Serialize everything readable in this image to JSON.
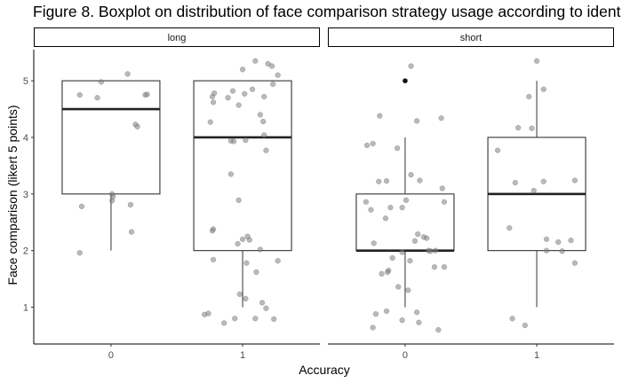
{
  "chart_data": {
    "type": "boxplot",
    "title": "Figure 8. Boxplot on distribution of face comparison strategy usage according to ident",
    "xlabel": "Accuracy",
    "ylabel": "Face comparison (likert 5 points)",
    "y_ticks": [
      1,
      2,
      3,
      4,
      5
    ],
    "ylim": [
      0.35,
      5.55
    ],
    "facets": [
      {
        "label": "long",
        "groups": [
          {
            "category": "0",
            "box": {
              "min": 2,
              "q1": 3,
              "median": 4.5,
              "q3": 5,
              "max": 5
            },
            "outliers": [],
            "points": [
              [
                -0.32,
                4.75
              ],
              [
                -0.14,
                4.7
              ],
              [
                -0.1,
                4.98
              ],
              [
                0.17,
                5.12
              ],
              [
                0.25,
                4.23
              ],
              [
                0.27,
                4.19
              ],
              [
                0.35,
                4.75
              ],
              [
                0.37,
                4.76
              ],
              [
                -0.3,
                2.78
              ],
              [
                0.01,
                3.0
              ],
              [
                0.02,
                2.95
              ],
              [
                0.01,
                2.88
              ],
              [
                0.2,
                2.81
              ],
              [
                0.21,
                2.33
              ],
              [
                -0.32,
                1.96
              ]
            ]
          },
          {
            "category": "1",
            "box": {
              "min": 1,
              "q1": 2,
              "median": 4,
              "q3": 5,
              "max": 5
            },
            "outliers": [],
            "points": [
              [
                -0.3,
                4.62
              ],
              [
                -0.31,
                4.72
              ],
              [
                -0.29,
                4.78
              ],
              [
                -0.15,
                4.7
              ],
              [
                -0.1,
                4.82
              ],
              [
                -0.04,
                4.57
              ],
              [
                0.02,
                4.77
              ],
              [
                0.1,
                4.85
              ],
              [
                0.13,
                5.35
              ],
              [
                0.18,
                4.4
              ],
              [
                0.22,
                4.72
              ],
              [
                0.26,
                5.3
              ],
              [
                0.3,
                5.26
              ],
              [
                0.31,
                4.94
              ],
              [
                0.36,
                5.1
              ],
              [
                0.0,
                5.2
              ],
              [
                -0.33,
                4.27
              ],
              [
                -0.12,
                3.94
              ],
              [
                -0.09,
                3.93
              ],
              [
                0.03,
                3.95
              ],
              [
                0.21,
                4.28
              ],
              [
                0.22,
                4.04
              ],
              [
                0.24,
                3.77
              ],
              [
                -0.12,
                3.35
              ],
              [
                -0.3,
                2.38
              ],
              [
                -0.31,
                2.35
              ],
              [
                -0.04,
                2.89
              ],
              [
                0.05,
                2.25
              ],
              [
                0.07,
                2.19
              ],
              [
                -0.05,
                2.12
              ],
              [
                0.0,
                2.2
              ],
              [
                0.18,
                2.02
              ],
              [
                -0.3,
                1.84
              ],
              [
                0.04,
                1.78
              ],
              [
                0.14,
                1.62
              ],
              [
                0.36,
                1.82
              ],
              [
                -0.03,
                1.23
              ],
              [
                0.03,
                1.15
              ],
              [
                0.2,
                1.08
              ],
              [
                0.24,
                0.98
              ],
              [
                -0.39,
                0.87
              ],
              [
                -0.35,
                0.89
              ],
              [
                -0.19,
                0.72
              ],
              [
                -0.08,
                0.8
              ],
              [
                0.13,
                0.8
              ],
              [
                0.32,
                0.79
              ]
            ]
          }
        ]
      },
      {
        "label": "short",
        "groups": [
          {
            "category": "0",
            "box": {
              "min": 1,
              "q1": 2,
              "median": 2,
              "q3": 3,
              "max": 4
            },
            "outliers": [
              5
            ],
            "points": [
              [
                0.06,
                5.26
              ],
              [
                -0.26,
                4.38
              ],
              [
                0.12,
                4.29
              ],
              [
                0.37,
                4.34
              ],
              [
                -0.39,
                3.86
              ],
              [
                -0.33,
                3.89
              ],
              [
                -0.08,
                3.81
              ],
              [
                0.06,
                3.34
              ],
              [
                0.15,
                3.24
              ],
              [
                0.38,
                3.1
              ],
              [
                -0.27,
                3.22
              ],
              [
                -0.19,
                3.23
              ],
              [
                -0.4,
                2.86
              ],
              [
                -0.2,
                2.57
              ],
              [
                -0.03,
                2.76
              ],
              [
                -0.15,
                2.76
              ],
              [
                -0.35,
                2.72
              ],
              [
                0.01,
                2.89
              ],
              [
                0.4,
                2.86
              ],
              [
                -0.32,
                2.13
              ],
              [
                0.22,
                2.22
              ],
              [
                0.24,
                2.0
              ],
              [
                0.31,
                2.0
              ],
              [
                0.13,
                2.29
              ],
              [
                0.19,
                2.24
              ],
              [
                0.1,
                2.17
              ],
              [
                0.26,
                1.99
              ],
              [
                -0.03,
                1.97
              ],
              [
                0.05,
                1.82
              ],
              [
                -0.17,
                1.65
              ],
              [
                -0.18,
                1.62
              ],
              [
                -0.13,
                1.87
              ],
              [
                0.3,
                1.71
              ],
              [
                0.4,
                1.71
              ],
              [
                -0.24,
                1.59
              ],
              [
                -0.07,
                1.36
              ],
              [
                0.03,
                1.3
              ],
              [
                -0.3,
                0.88
              ],
              [
                -0.19,
                0.93
              ],
              [
                0.12,
                0.91
              ],
              [
                -0.03,
                0.77
              ],
              [
                0.14,
                0.73
              ],
              [
                -0.33,
                0.64
              ],
              [
                0.34,
                0.6
              ]
            ]
          },
          {
            "category": "1",
            "box": {
              "min": 1,
              "q1": 2,
              "median": 3,
              "q3": 4,
              "max": 5
            },
            "outliers": [],
            "points": [
              [
                0.0,
                5.35
              ],
              [
                -0.08,
                4.72
              ],
              [
                0.07,
                4.85
              ],
              [
                -0.19,
                4.17
              ],
              [
                -0.05,
                4.16
              ],
              [
                -0.4,
                3.77
              ],
              [
                -0.22,
                3.2
              ],
              [
                -0.03,
                3.06
              ],
              [
                0.07,
                3.22
              ],
              [
                0.39,
                3.24
              ],
              [
                -0.28,
                2.4
              ],
              [
                0.1,
                2.2
              ],
              [
                0.22,
                2.15
              ],
              [
                0.35,
                2.18
              ],
              [
                0.1,
                2.0
              ],
              [
                0.26,
                1.99
              ],
              [
                0.39,
                1.78
              ],
              [
                -0.25,
                0.8
              ],
              [
                -0.12,
                0.68
              ]
            ]
          }
        ]
      }
    ]
  }
}
